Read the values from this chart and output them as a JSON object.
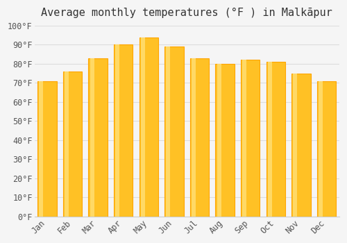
{
  "title": "Average monthly temperatures (°F ) in Malkāpur",
  "months": [
    "Jan",
    "Feb",
    "Mar",
    "Apr",
    "May",
    "Jun",
    "Jul",
    "Aug",
    "Sep",
    "Oct",
    "Nov",
    "Dec"
  ],
  "values": [
    71,
    76,
    83,
    90,
    94,
    89,
    83,
    80,
    82,
    81,
    75,
    71
  ],
  "bar_color_face": "#FFC125",
  "bar_color_edge": "#FFA500",
  "background_color": "#f5f5f5",
  "ylim": [
    0,
    100
  ],
  "yticks": [
    0,
    10,
    20,
    30,
    40,
    50,
    60,
    70,
    80,
    90,
    100
  ],
  "ytick_labels": [
    "0°F",
    "10°F",
    "20°F",
    "30°F",
    "40°F",
    "50°F",
    "60°F",
    "70°F",
    "80°F",
    "90°F",
    "100°F"
  ],
  "grid_color": "#dddddd",
  "title_fontsize": 11,
  "tick_fontsize": 8.5
}
